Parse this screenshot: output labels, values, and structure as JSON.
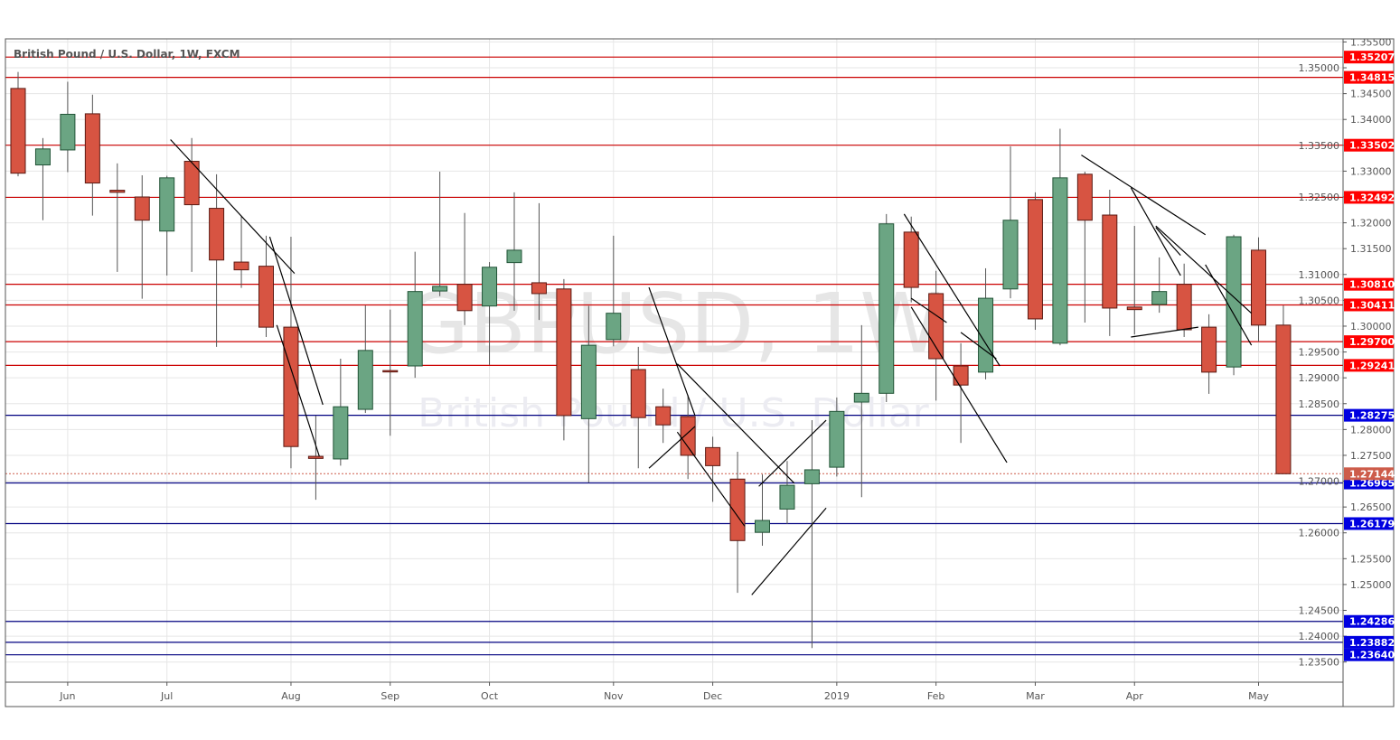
{
  "chart_data": {
    "type": "candlestick",
    "title": "British Pound / U.S. Dollar, 1W, FXCM",
    "watermark": {
      "symbol": "GBPUSD, 1W",
      "description": "British Pound / U.S. Dollar"
    },
    "interval": "1W",
    "first_bar_date": "2018-05-20",
    "ylim": [
      1.2311,
      1.3556
    ],
    "y_ticks": [
      1.235,
      1.24,
      1.245,
      1.25,
      1.255,
      1.26,
      1.265,
      1.27,
      1.275,
      1.28,
      1.285,
      1.29,
      1.295,
      1.3,
      1.305,
      1.31,
      1.315,
      1.32,
      1.325,
      1.33,
      1.335,
      1.34,
      1.345,
      1.35,
      1.355
    ],
    "x_ticks": [
      {
        "label": "Jun",
        "date": "2018-06-03"
      },
      {
        "label": "Jul",
        "date": "2018-07-01"
      },
      {
        "label": "Aug",
        "date": "2018-08-05"
      },
      {
        "label": "Sep",
        "date": "2018-09-02"
      },
      {
        "label": "Oct",
        "date": "2018-09-30"
      },
      {
        "label": "Nov",
        "date": "2018-11-04"
      },
      {
        "label": "Dec",
        "date": "2018-12-02"
      },
      {
        "label": "2019",
        "date": "2019-01-06"
      },
      {
        "label": "Feb",
        "date": "2019-02-03"
      },
      {
        "label": "Mar",
        "date": "2019-03-03"
      },
      {
        "label": "Apr",
        "date": "2019-03-31"
      },
      {
        "label": "May",
        "date": "2019-05-05"
      }
    ],
    "grid": true,
    "colors": {
      "up": "#6BA583",
      "down": "#D75442",
      "up_border": "#225437",
      "down_border": "#5B1A13",
      "resistance": "#CC0000",
      "resistance_label": "#FF0000",
      "support": "#000080",
      "support_label": "#0000E0",
      "last_price": "#CD5C4A",
      "trendline": "#000000"
    },
    "ohlc": [
      [
        1.346,
        1.3492,
        1.329,
        1.3296
      ],
      [
        1.3312,
        1.3364,
        1.3205,
        1.3343
      ],
      [
        1.3341,
        1.3473,
        1.3298,
        1.341
      ],
      [
        1.3411,
        1.3448,
        1.3214,
        1.3277
      ],
      [
        1.3263,
        1.3315,
        1.3105,
        1.3259
      ],
      [
        1.325,
        1.3292,
        1.3053,
        1.3205
      ],
      [
        1.3184,
        1.3291,
        1.3098,
        1.3287
      ],
      [
        1.3319,
        1.3364,
        1.3105,
        1.3235
      ],
      [
        1.3228,
        1.3294,
        1.296,
        1.3128
      ],
      [
        1.3124,
        1.3214,
        1.3074,
        1.3109
      ],
      [
        1.3116,
        1.3175,
        1.2979,
        1.2998
      ],
      [
        1.2998,
        1.3173,
        1.2725,
        1.2767
      ],
      [
        1.2748,
        1.2827,
        1.2664,
        1.2744
      ],
      [
        1.2743,
        1.2937,
        1.273,
        1.2844
      ],
      [
        1.2839,
        1.304,
        1.2832,
        1.2953
      ],
      [
        1.2914,
        1.3032,
        1.2788,
        1.2913
      ],
      [
        1.2923,
        1.3144,
        1.29,
        1.3067
      ],
      [
        1.3068,
        1.3299,
        1.3058,
        1.3077
      ],
      [
        1.3081,
        1.3219,
        1.3002,
        1.303
      ],
      [
        1.3039,
        1.3124,
        1.2925,
        1.3114
      ],
      [
        1.3123,
        1.3259,
        1.303,
        1.3147
      ],
      [
        1.3084,
        1.3238,
        1.3012,
        1.3063
      ],
      [
        1.3072,
        1.3091,
        1.2779,
        1.2827
      ],
      [
        1.2821,
        1.3039,
        1.2697,
        1.2963
      ],
      [
        1.2974,
        1.3175,
        1.2961,
        1.3025
      ],
      [
        1.2916,
        1.296,
        1.2725,
        1.2823
      ],
      [
        1.2844,
        1.2879,
        1.2774,
        1.2809
      ],
      [
        1.2825,
        1.2867,
        1.2704,
        1.275
      ],
      [
        1.2765,
        1.2786,
        1.266,
        1.273
      ],
      [
        1.2704,
        1.2757,
        1.2484,
        1.2585
      ],
      [
        1.2601,
        1.2713,
        1.2575,
        1.2624
      ],
      [
        1.2646,
        1.2739,
        1.2617,
        1.2692
      ],
      [
        1.2695,
        1.2818,
        1.2377,
        1.2722
      ],
      [
        1.2727,
        1.2862,
        1.2709,
        1.2835
      ],
      [
        1.2853,
        1.3002,
        1.2669,
        1.287
      ],
      [
        1.287,
        1.3217,
        1.2853,
        1.3198
      ],
      [
        1.3182,
        1.3212,
        1.3046,
        1.3075
      ],
      [
        1.3063,
        1.3107,
        1.2856,
        1.2937
      ],
      [
        1.2923,
        1.2967,
        1.2774,
        1.2886
      ],
      [
        1.2911,
        1.3112,
        1.2897,
        1.3054
      ],
      [
        1.3072,
        1.3348,
        1.3054,
        1.3205
      ],
      [
        1.3245,
        1.3259,
        1.2993,
        1.3014
      ],
      [
        1.2967,
        1.3382,
        1.2963,
        1.3287
      ],
      [
        1.3294,
        1.3299,
        1.3007,
        1.3205
      ],
      [
        1.3215,
        1.3264,
        1.2981,
        1.3035
      ],
      [
        1.3037,
        1.3194,
        1.2984,
        1.3032
      ],
      [
        1.3042,
        1.3133,
        1.3026,
        1.3067
      ],
      [
        1.3081,
        1.3121,
        1.2979,
        1.2993
      ],
      [
        1.2998,
        1.3023,
        1.2869,
        1.2911
      ],
      [
        1.2921,
        1.3177,
        1.2905,
        1.3173
      ],
      [
        1.3147,
        1.3172,
        1.297,
        1.3002
      ],
      [
        1.3002,
        1.304,
        1.2714,
        1.27144
      ]
    ],
    "horizontal_levels": [
      {
        "price": 1.35207,
        "label": "1.35207",
        "kind": "resistance"
      },
      {
        "price": 1.34815,
        "label": "1.34815",
        "kind": "resistance"
      },
      {
        "price": 1.33502,
        "label": "1.33502",
        "kind": "resistance"
      },
      {
        "price": 1.32492,
        "label": "1.32492",
        "kind": "resistance"
      },
      {
        "price": 1.3081,
        "label": "1.30810",
        "kind": "resistance"
      },
      {
        "price": 1.30411,
        "label": "1.30411",
        "kind": "resistance"
      },
      {
        "price": 1.297,
        "label": "1.29700",
        "kind": "resistance"
      },
      {
        "price": 1.29241,
        "label": "1.29241",
        "kind": "resistance"
      },
      {
        "price": 1.28275,
        "label": "1.28275",
        "kind": "support"
      },
      {
        "price": 1.26965,
        "label": "1.26965",
        "kind": "support"
      },
      {
        "price": 1.26179,
        "label": "1.26179",
        "kind": "support"
      },
      {
        "price": 1.24286,
        "label": "1.24286",
        "kind": "support"
      },
      {
        "price": 1.23882,
        "label": "1.23882",
        "kind": "support"
      },
      {
        "price": 1.2364,
        "label": "1.23640",
        "kind": "support"
      }
    ],
    "last_price": {
      "price": 1.27144,
      "label": "1.27144"
    },
    "trendlines": [
      [
        [
          "2018-07-02",
          1.3361
        ],
        [
          "2018-08-06",
          1.3102
        ]
      ],
      [
        [
          "2018-07-30",
          1.3173
        ],
        [
          "2018-08-14",
          1.2848
        ]
      ],
      [
        [
          "2018-08-01",
          1.3002
        ],
        [
          "2018-08-13",
          1.2748
        ]
      ],
      [
        [
          "2018-11-14",
          1.3075
        ],
        [
          "2018-11-27",
          1.2827
        ]
      ],
      [
        [
          "2018-11-22",
          1.2927
        ],
        [
          "2018-12-25",
          1.2696
        ]
      ],
      [
        [
          "2018-11-22",
          1.2795
        ],
        [
          "2018-12-11",
          1.2613
        ]
      ],
      [
        [
          "2018-11-14",
          1.2725
        ],
        [
          "2018-11-27",
          1.2806
        ]
      ],
      [
        [
          "2018-12-13",
          1.248
        ],
        [
          "2019-01-03",
          1.2648
        ]
      ],
      [
        [
          "2018-12-15",
          1.269
        ],
        [
          "2019-01-03",
          1.2818
        ]
      ],
      [
        [
          "2019-01-27",
          1.3037
        ],
        [
          "2019-02-23",
          1.2736
        ]
      ],
      [
        [
          "2019-01-25",
          1.3217
        ],
        [
          "2019-02-21",
          1.2923
        ]
      ],
      [
        [
          "2019-01-27",
          1.3054
        ],
        [
          "2019-02-06",
          1.3007
        ]
      ],
      [
        [
          "2019-02-10",
          1.2988
        ],
        [
          "2019-02-20",
          1.2937
        ]
      ],
      [
        [
          "2019-03-16",
          1.3331
        ],
        [
          "2019-04-20",
          1.3177
        ]
      ],
      [
        [
          "2019-03-30",
          1.3268
        ],
        [
          "2019-04-13",
          1.3098
        ]
      ],
      [
        [
          "2019-04-06",
          1.3194
        ],
        [
          "2019-05-03",
          1.3025
        ]
      ],
      [
        [
          "2019-03-30",
          1.2979
        ],
        [
          "2019-04-18",
          1.2998
        ]
      ],
      [
        [
          "2019-04-20",
          1.3119
        ],
        [
          "2019-05-03",
          1.2963
        ]
      ],
      [
        [
          "2019-04-06",
          1.3191
        ],
        [
          "2019-04-13",
          1.3137
        ]
      ]
    ]
  }
}
